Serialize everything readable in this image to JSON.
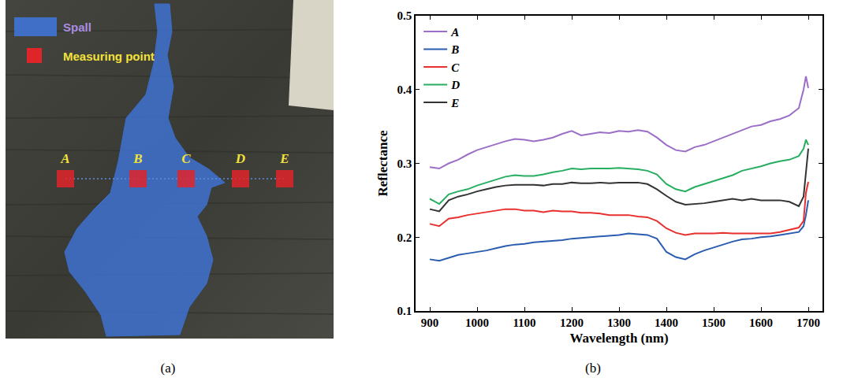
{
  "panel_labels": [
    "(a)",
    "(b)"
  ],
  "panel_a": {
    "legend": [
      {
        "text": "Spall"
      },
      {
        "text": "Measuring point"
      }
    ],
    "points": [
      "A",
      "B",
      "C",
      "D",
      "E"
    ]
  },
  "chart_data": {
    "type": "line",
    "x_label": "Wavelength (nm)",
    "y_label": "Reflectance",
    "x": [
      900,
      920,
      940,
      960,
      980,
      1000,
      1020,
      1040,
      1060,
      1080,
      1100,
      1120,
      1140,
      1160,
      1180,
      1200,
      1220,
      1240,
      1260,
      1280,
      1300,
      1320,
      1340,
      1360,
      1380,
      1400,
      1420,
      1440,
      1460,
      1480,
      1500,
      1520,
      1540,
      1560,
      1580,
      1600,
      1620,
      1640,
      1660,
      1680,
      1690,
      1695,
      1700
    ],
    "series": [
      {
        "name": "A",
        "color": "#9b6fc7",
        "values": [
          0.295,
          0.293,
          0.3,
          0.305,
          0.312,
          0.318,
          0.322,
          0.326,
          0.33,
          0.333,
          0.332,
          0.33,
          0.332,
          0.335,
          0.34,
          0.344,
          0.338,
          0.34,
          0.342,
          0.341,
          0.344,
          0.343,
          0.345,
          0.343,
          0.335,
          0.325,
          0.318,
          0.316,
          0.322,
          0.325,
          0.33,
          0.335,
          0.34,
          0.345,
          0.35,
          0.352,
          0.357,
          0.36,
          0.365,
          0.375,
          0.4,
          0.418,
          0.402
        ]
      },
      {
        "name": "B",
        "color": "#2a5db0",
        "values": [
          0.17,
          0.168,
          0.172,
          0.176,
          0.178,
          0.18,
          0.182,
          0.185,
          0.188,
          0.19,
          0.191,
          0.193,
          0.194,
          0.195,
          0.196,
          0.198,
          0.199,
          0.2,
          0.201,
          0.202,
          0.203,
          0.205,
          0.204,
          0.203,
          0.198,
          0.18,
          0.173,
          0.17,
          0.177,
          0.182,
          0.186,
          0.19,
          0.194,
          0.197,
          0.198,
          0.2,
          0.201,
          0.203,
          0.205,
          0.207,
          0.215,
          0.23,
          0.25
        ]
      },
      {
        "name": "C",
        "color": "#e8312f",
        "values": [
          0.218,
          0.215,
          0.225,
          0.227,
          0.23,
          0.232,
          0.234,
          0.236,
          0.238,
          0.238,
          0.236,
          0.236,
          0.234,
          0.236,
          0.235,
          0.235,
          0.233,
          0.233,
          0.232,
          0.23,
          0.23,
          0.23,
          0.228,
          0.227,
          0.222,
          0.212,
          0.206,
          0.203,
          0.205,
          0.205,
          0.205,
          0.206,
          0.205,
          0.205,
          0.205,
          0.205,
          0.205,
          0.207,
          0.21,
          0.213,
          0.222,
          0.26,
          0.275
        ]
      },
      {
        "name": "D",
        "color": "#27ae60",
        "values": [
          0.252,
          0.245,
          0.258,
          0.262,
          0.265,
          0.27,
          0.274,
          0.278,
          0.282,
          0.284,
          0.283,
          0.283,
          0.285,
          0.288,
          0.29,
          0.293,
          0.292,
          0.293,
          0.293,
          0.293,
          0.294,
          0.293,
          0.292,
          0.29,
          0.285,
          0.272,
          0.265,
          0.262,
          0.268,
          0.272,
          0.276,
          0.28,
          0.284,
          0.29,
          0.293,
          0.296,
          0.3,
          0.303,
          0.305,
          0.31,
          0.32,
          0.332,
          0.325
        ]
      },
      {
        "name": "E",
        "color": "#333333",
        "values": [
          0.238,
          0.235,
          0.25,
          0.255,
          0.258,
          0.262,
          0.265,
          0.268,
          0.27,
          0.271,
          0.271,
          0.271,
          0.27,
          0.272,
          0.272,
          0.274,
          0.273,
          0.273,
          0.274,
          0.273,
          0.274,
          0.274,
          0.274,
          0.272,
          0.265,
          0.256,
          0.248,
          0.244,
          0.245,
          0.246,
          0.248,
          0.25,
          0.252,
          0.25,
          0.252,
          0.25,
          0.25,
          0.25,
          0.248,
          0.242,
          0.255,
          0.29,
          0.32
        ]
      }
    ],
    "xlim": [
      870,
      1730
    ],
    "xticks": [
      900,
      1000,
      1100,
      1200,
      1300,
      1400,
      1500,
      1600,
      1700
    ],
    "ylim": [
      0.1,
      0.5
    ],
    "yticks": [
      0.1,
      0.2,
      0.3,
      0.4,
      0.5
    ],
    "legend": "upper left",
    "grid": false
  }
}
